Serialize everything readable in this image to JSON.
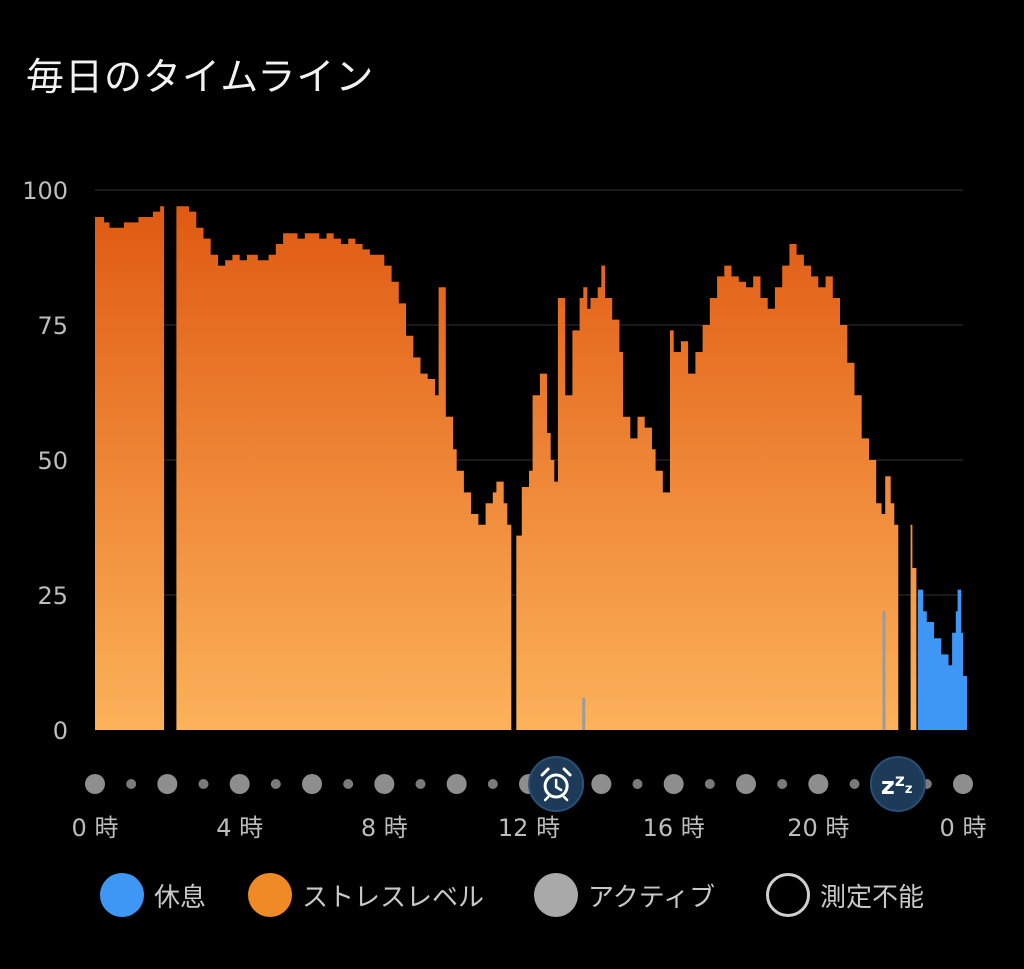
{
  "chart_data": {
    "type": "area",
    "title": "毎日のタイムライン",
    "ylim": [
      0,
      100
    ],
    "y_ticks": [
      "0",
      "25",
      "50",
      "75",
      "100"
    ],
    "x_ticks": [
      "0 時",
      "4 時",
      "8 時",
      "12 時",
      "16 時",
      "20 時",
      "0 時"
    ],
    "x_range_hours": [
      0,
      24
    ],
    "grid": true,
    "markers": [
      {
        "name": "alarm-icon",
        "hour": 12.75
      },
      {
        "name": "sleep-icon",
        "hour": 22.2,
        "label": "zzz"
      }
    ],
    "series": [
      {
        "name": "ストレスレベル",
        "color": "#f08a24",
        "segments": [
          [
            [
              0.0,
              95
            ],
            [
              0.1,
              95
            ],
            [
              0.25,
              94
            ],
            [
              0.4,
              93
            ],
            [
              0.6,
              93
            ],
            [
              0.8,
              94
            ],
            [
              1.0,
              94
            ],
            [
              1.2,
              95
            ],
            [
              1.4,
              95
            ],
            [
              1.6,
              96
            ],
            [
              1.8,
              97
            ]
          ],
          [
            [
              2.25,
              97
            ],
            [
              2.4,
              97
            ],
            [
              2.6,
              96
            ],
            [
              2.8,
              93
            ],
            [
              3.0,
              91
            ],
            [
              3.2,
              88
            ],
            [
              3.4,
              86
            ],
            [
              3.6,
              87
            ],
            [
              3.8,
              88
            ],
            [
              4.0,
              87
            ],
            [
              4.2,
              88
            ],
            [
              4.5,
              87
            ],
            [
              4.8,
              88
            ],
            [
              5.0,
              90
            ],
            [
              5.2,
              92
            ],
            [
              5.4,
              92
            ],
            [
              5.6,
              91
            ],
            [
              5.8,
              92
            ],
            [
              6.0,
              92
            ],
            [
              6.2,
              91
            ],
            [
              6.4,
              92
            ],
            [
              6.6,
              91
            ],
            [
              6.8,
              90
            ],
            [
              7.0,
              91
            ],
            [
              7.2,
              90
            ],
            [
              7.4,
              89
            ],
            [
              7.6,
              88
            ],
            [
              7.8,
              88
            ],
            [
              8.0,
              86
            ],
            [
              8.2,
              83
            ],
            [
              8.4,
              79
            ],
            [
              8.6,
              73
            ],
            [
              8.8,
              69
            ],
            [
              9.0,
              66
            ],
            [
              9.2,
              65
            ],
            [
              9.4,
              62
            ],
            [
              9.5,
              82
            ],
            [
              9.7,
              58
            ]
          ],
          [
            [
              9.75,
              58
            ],
            [
              9.9,
              52
            ],
            [
              10.0,
              48
            ],
            [
              10.2,
              44
            ],
            [
              10.4,
              40
            ],
            [
              10.6,
              38
            ],
            [
              10.8,
              42
            ],
            [
              11.0,
              44
            ],
            [
              11.1,
              46
            ],
            [
              11.3,
              42
            ],
            [
              11.4,
              38
            ]
          ],
          [
            [
              11.65,
              36
            ],
            [
              11.8,
              45
            ],
            [
              12.0,
              48
            ],
            [
              12.1,
              62
            ],
            [
              12.3,
              66
            ],
            [
              12.5,
              55
            ],
            [
              12.6,
              50
            ],
            [
              12.7,
              46
            ]
          ],
          [
            [
              12.8,
              80
            ],
            [
              13.0,
              62
            ],
            [
              13.2,
              74
            ],
            [
              13.4,
              80
            ],
            [
              13.5,
              82
            ]
          ],
          [
            [
              13.55,
              78
            ],
            [
              13.7,
              80
            ],
            [
              13.9,
              82
            ],
            [
              14.0,
              86
            ],
            [
              14.1,
              80
            ],
            [
              14.3,
              76
            ],
            [
              14.5,
              70
            ],
            [
              14.6,
              58
            ],
            [
              14.8,
              54
            ],
            [
              15.0,
              58
            ],
            [
              15.2,
              56
            ],
            [
              15.4,
              52
            ],
            [
              15.5,
              48
            ],
            [
              15.7,
              44
            ],
            [
              15.9,
              74
            ],
            [
              16.0,
              70
            ],
            [
              16.2,
              72
            ],
            [
              16.4,
              66
            ],
            [
              16.6,
              70
            ],
            [
              16.8,
              75
            ],
            [
              17.0,
              80
            ],
            [
              17.2,
              84
            ],
            [
              17.4,
              86
            ],
            [
              17.6,
              84
            ],
            [
              17.8,
              83
            ],
            [
              18.0,
              82
            ],
            [
              18.2,
              84
            ],
            [
              18.4,
              80
            ],
            [
              18.6,
              78
            ],
            [
              18.8,
              82
            ],
            [
              19.0,
              86
            ],
            [
              19.2,
              90
            ],
            [
              19.4,
              88
            ],
            [
              19.6,
              86
            ],
            [
              19.8,
              84
            ],
            [
              20.0,
              82
            ],
            [
              20.2,
              84
            ],
            [
              20.4,
              80
            ],
            [
              20.6,
              75
            ],
            [
              20.8,
              68
            ],
            [
              21.0,
              62
            ],
            [
              21.2,
              54
            ],
            [
              21.4,
              50
            ],
            [
              21.6,
              42
            ],
            [
              21.75,
              40
            ]
          ],
          [
            [
              21.85,
              47
            ],
            [
              22.0,
              42
            ],
            [
              22.1,
              38
            ]
          ],
          [
            [
              22.55,
              38
            ],
            [
              22.6,
              30
            ]
          ]
        ]
      },
      {
        "name": "休息",
        "color": "#3f97f5",
        "segments": [
          [
            [
              22.75,
              26
            ],
            [
              22.9,
              22
            ],
            [
              23.0,
              20
            ],
            [
              23.2,
              17
            ],
            [
              23.4,
              14
            ],
            [
              23.6,
              12
            ],
            [
              23.7,
              18
            ],
            [
              23.8,
              22
            ],
            [
              23.85,
              26
            ],
            [
              23.95,
              18
            ],
            [
              24.0,
              10
            ]
          ]
        ]
      },
      {
        "name": "アクティブ",
        "color": "#9b9b9b",
        "segments": [
          [
            [
              13.5,
              6
            ]
          ],
          [
            [
              21.8,
              22
            ]
          ]
        ]
      }
    ],
    "legend": [
      {
        "label": "休息",
        "color": "#3f97f5",
        "style": "filled"
      },
      {
        "label": "ストレスレベル",
        "color": "#f08a24",
        "style": "filled"
      },
      {
        "label": "アクティブ",
        "color": "#a9a9a9",
        "style": "filled"
      },
      {
        "label": "測定不能",
        "color": "#cfcfcf",
        "style": "outline"
      }
    ]
  }
}
